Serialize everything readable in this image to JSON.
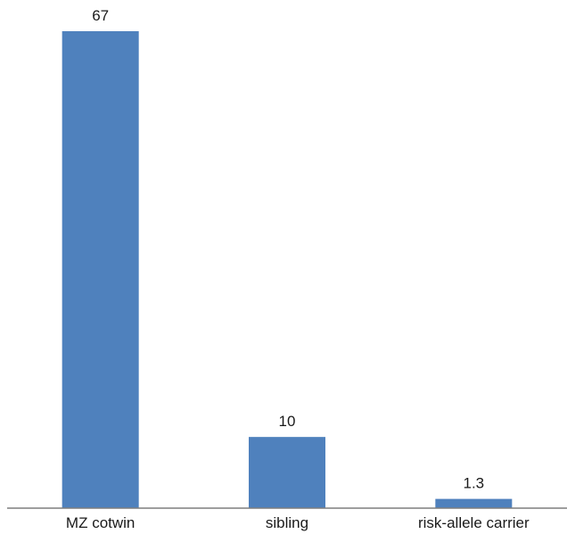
{
  "chart_data": {
    "type": "bar",
    "title": "",
    "xlabel": "",
    "ylabel": "",
    "categories": [
      "MZ cotwin",
      "sibling",
      "risk-allele carrier"
    ],
    "values": [
      67,
      10,
      1.3
    ],
    "data_labels": [
      "67",
      "10",
      "1.3"
    ],
    "ylim": [
      0,
      67
    ],
    "grid": false,
    "legend": "none",
    "bar_color": "#4f81bd",
    "axis_color": "#7f7f7f"
  }
}
